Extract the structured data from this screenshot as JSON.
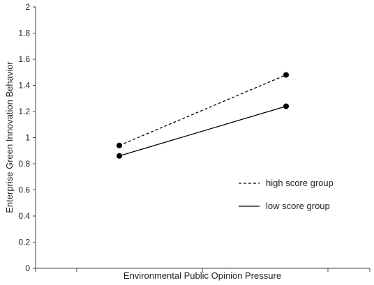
{
  "chart_data": {
    "type": "line",
    "title": "",
    "xlabel": "Environmental Public Opinion Pressure",
    "ylabel": "Enterprise Green Innovation Behavior",
    "ylim": [
      0,
      2
    ],
    "yticks": [
      "0",
      "0.2",
      "0.4",
      "0.6",
      "0.8",
      "1",
      "1.2",
      "1.4",
      "1.6",
      "1.8",
      "2"
    ],
    "x_points": 2,
    "grid": false,
    "legend_position": "right-middle",
    "series": [
      {
        "name": "high score group",
        "line_style": "dashed",
        "color": "#000000",
        "values": [
          0.94,
          1.48
        ]
      },
      {
        "name": "low score group",
        "line_style": "solid",
        "color": "#000000",
        "values": [
          0.86,
          1.24
        ]
      }
    ]
  }
}
